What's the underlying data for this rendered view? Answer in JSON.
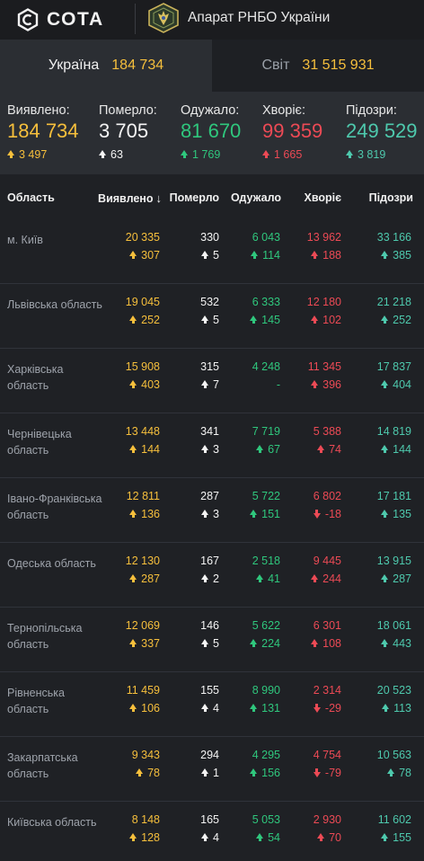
{
  "header": {
    "logo_text": "СОТА",
    "org_name": "Апарат РНБО України"
  },
  "tabs": [
    {
      "label": "Україна",
      "value": "184 734",
      "active": true
    },
    {
      "label": "Світ",
      "value": "31 515 931",
      "active": false
    }
  ],
  "summary": [
    {
      "label": "Виявлено:",
      "value": "184 734",
      "delta": "3 497",
      "dir": "up",
      "color": "yellow"
    },
    {
      "label": "Померло:",
      "value": "3 705",
      "delta": "63",
      "dir": "up",
      "color": "white"
    },
    {
      "label": "Одужало:",
      "value": "81 670",
      "delta": "1 769",
      "dir": "up",
      "color": "green"
    },
    {
      "label": "Хворіє:",
      "value": "99 359",
      "delta": "1 665",
      "dir": "up",
      "color": "red"
    },
    {
      "label": "Підозри:",
      "value": "249 529",
      "delta": "3 819",
      "dir": "up",
      "color": "teal"
    }
  ],
  "table": {
    "headers": {
      "region": "Область",
      "cases": "Виявлено",
      "deaths": "Померло",
      "recovered": "Одужало",
      "sick": "Хворіє",
      "suspected": "Підозри"
    },
    "rows": [
      {
        "region": "м. Київ",
        "cases": "20 335",
        "cases_d": "307",
        "deaths": "330",
        "deaths_d": "5",
        "rec": "6 043",
        "rec_d": "114",
        "sick": "13 962",
        "sick_d": "188",
        "sick_dir": "up",
        "susp": "33 166",
        "susp_d": "385"
      },
      {
        "region": "Львівська область",
        "cases": "19 045",
        "cases_d": "252",
        "deaths": "532",
        "deaths_d": "5",
        "rec": "6 333",
        "rec_d": "145",
        "sick": "12 180",
        "sick_d": "102",
        "sick_dir": "up",
        "susp": "21 218",
        "susp_d": "252"
      },
      {
        "region": "Харківська область",
        "cases": "15 908",
        "cases_d": "403",
        "deaths": "315",
        "deaths_d": "7",
        "rec": "4 248",
        "rec_d": "-",
        "sick": "11 345",
        "sick_d": "396",
        "sick_dir": "up",
        "susp": "17 837",
        "susp_d": "404"
      },
      {
        "region": "Чернівецька область",
        "cases": "13 448",
        "cases_d": "144",
        "deaths": "341",
        "deaths_d": "3",
        "rec": "7 719",
        "rec_d": "67",
        "sick": "5 388",
        "sick_d": "74",
        "sick_dir": "up",
        "susp": "14 819",
        "susp_d": "144"
      },
      {
        "region": "Івано-Франківська область",
        "cases": "12 811",
        "cases_d": "136",
        "deaths": "287",
        "deaths_d": "3",
        "rec": "5 722",
        "rec_d": "151",
        "sick": "6 802",
        "sick_d": "-18",
        "sick_dir": "down",
        "susp": "17 181",
        "susp_d": "135"
      },
      {
        "region": "Одеська область",
        "cases": "12 130",
        "cases_d": "287",
        "deaths": "167",
        "deaths_d": "2",
        "rec": "2 518",
        "rec_d": "41",
        "sick": "9 445",
        "sick_d": "244",
        "sick_dir": "up",
        "susp": "13 915",
        "susp_d": "287"
      },
      {
        "region": "Тернопільська область",
        "cases": "12 069",
        "cases_d": "337",
        "deaths": "146",
        "deaths_d": "5",
        "rec": "5 622",
        "rec_d": "224",
        "sick": "6 301",
        "sick_d": "108",
        "sick_dir": "up",
        "susp": "18 061",
        "susp_d": "443"
      },
      {
        "region": "Рівненська область",
        "cases": "11 459",
        "cases_d": "106",
        "deaths": "155",
        "deaths_d": "4",
        "rec": "8 990",
        "rec_d": "131",
        "sick": "2 314",
        "sick_d": "-29",
        "sick_dir": "down",
        "susp": "20 523",
        "susp_d": "113"
      },
      {
        "region": "Закарпатська область",
        "cases": "9 343",
        "cases_d": "78",
        "deaths": "294",
        "deaths_d": "1",
        "rec": "4 295",
        "rec_d": "156",
        "sick": "4 754",
        "sick_d": "-79",
        "sick_dir": "down",
        "susp": "10 563",
        "susp_d": "78"
      },
      {
        "region": "Київська область",
        "cases": "8 148",
        "cases_d": "128",
        "deaths": "165",
        "deaths_d": "4",
        "rec": "5 053",
        "rec_d": "54",
        "sick": "2 930",
        "sick_d": "70",
        "sick_dir": "up",
        "susp": "11 602",
        "susp_d": "155"
      }
    ]
  },
  "colors": {
    "yellow": "#f6bf3c",
    "green": "#2fc77d",
    "red": "#ec4a55",
    "teal": "#4ec9ad",
    "background": "#1f2125",
    "panel": "#2b2e33"
  }
}
